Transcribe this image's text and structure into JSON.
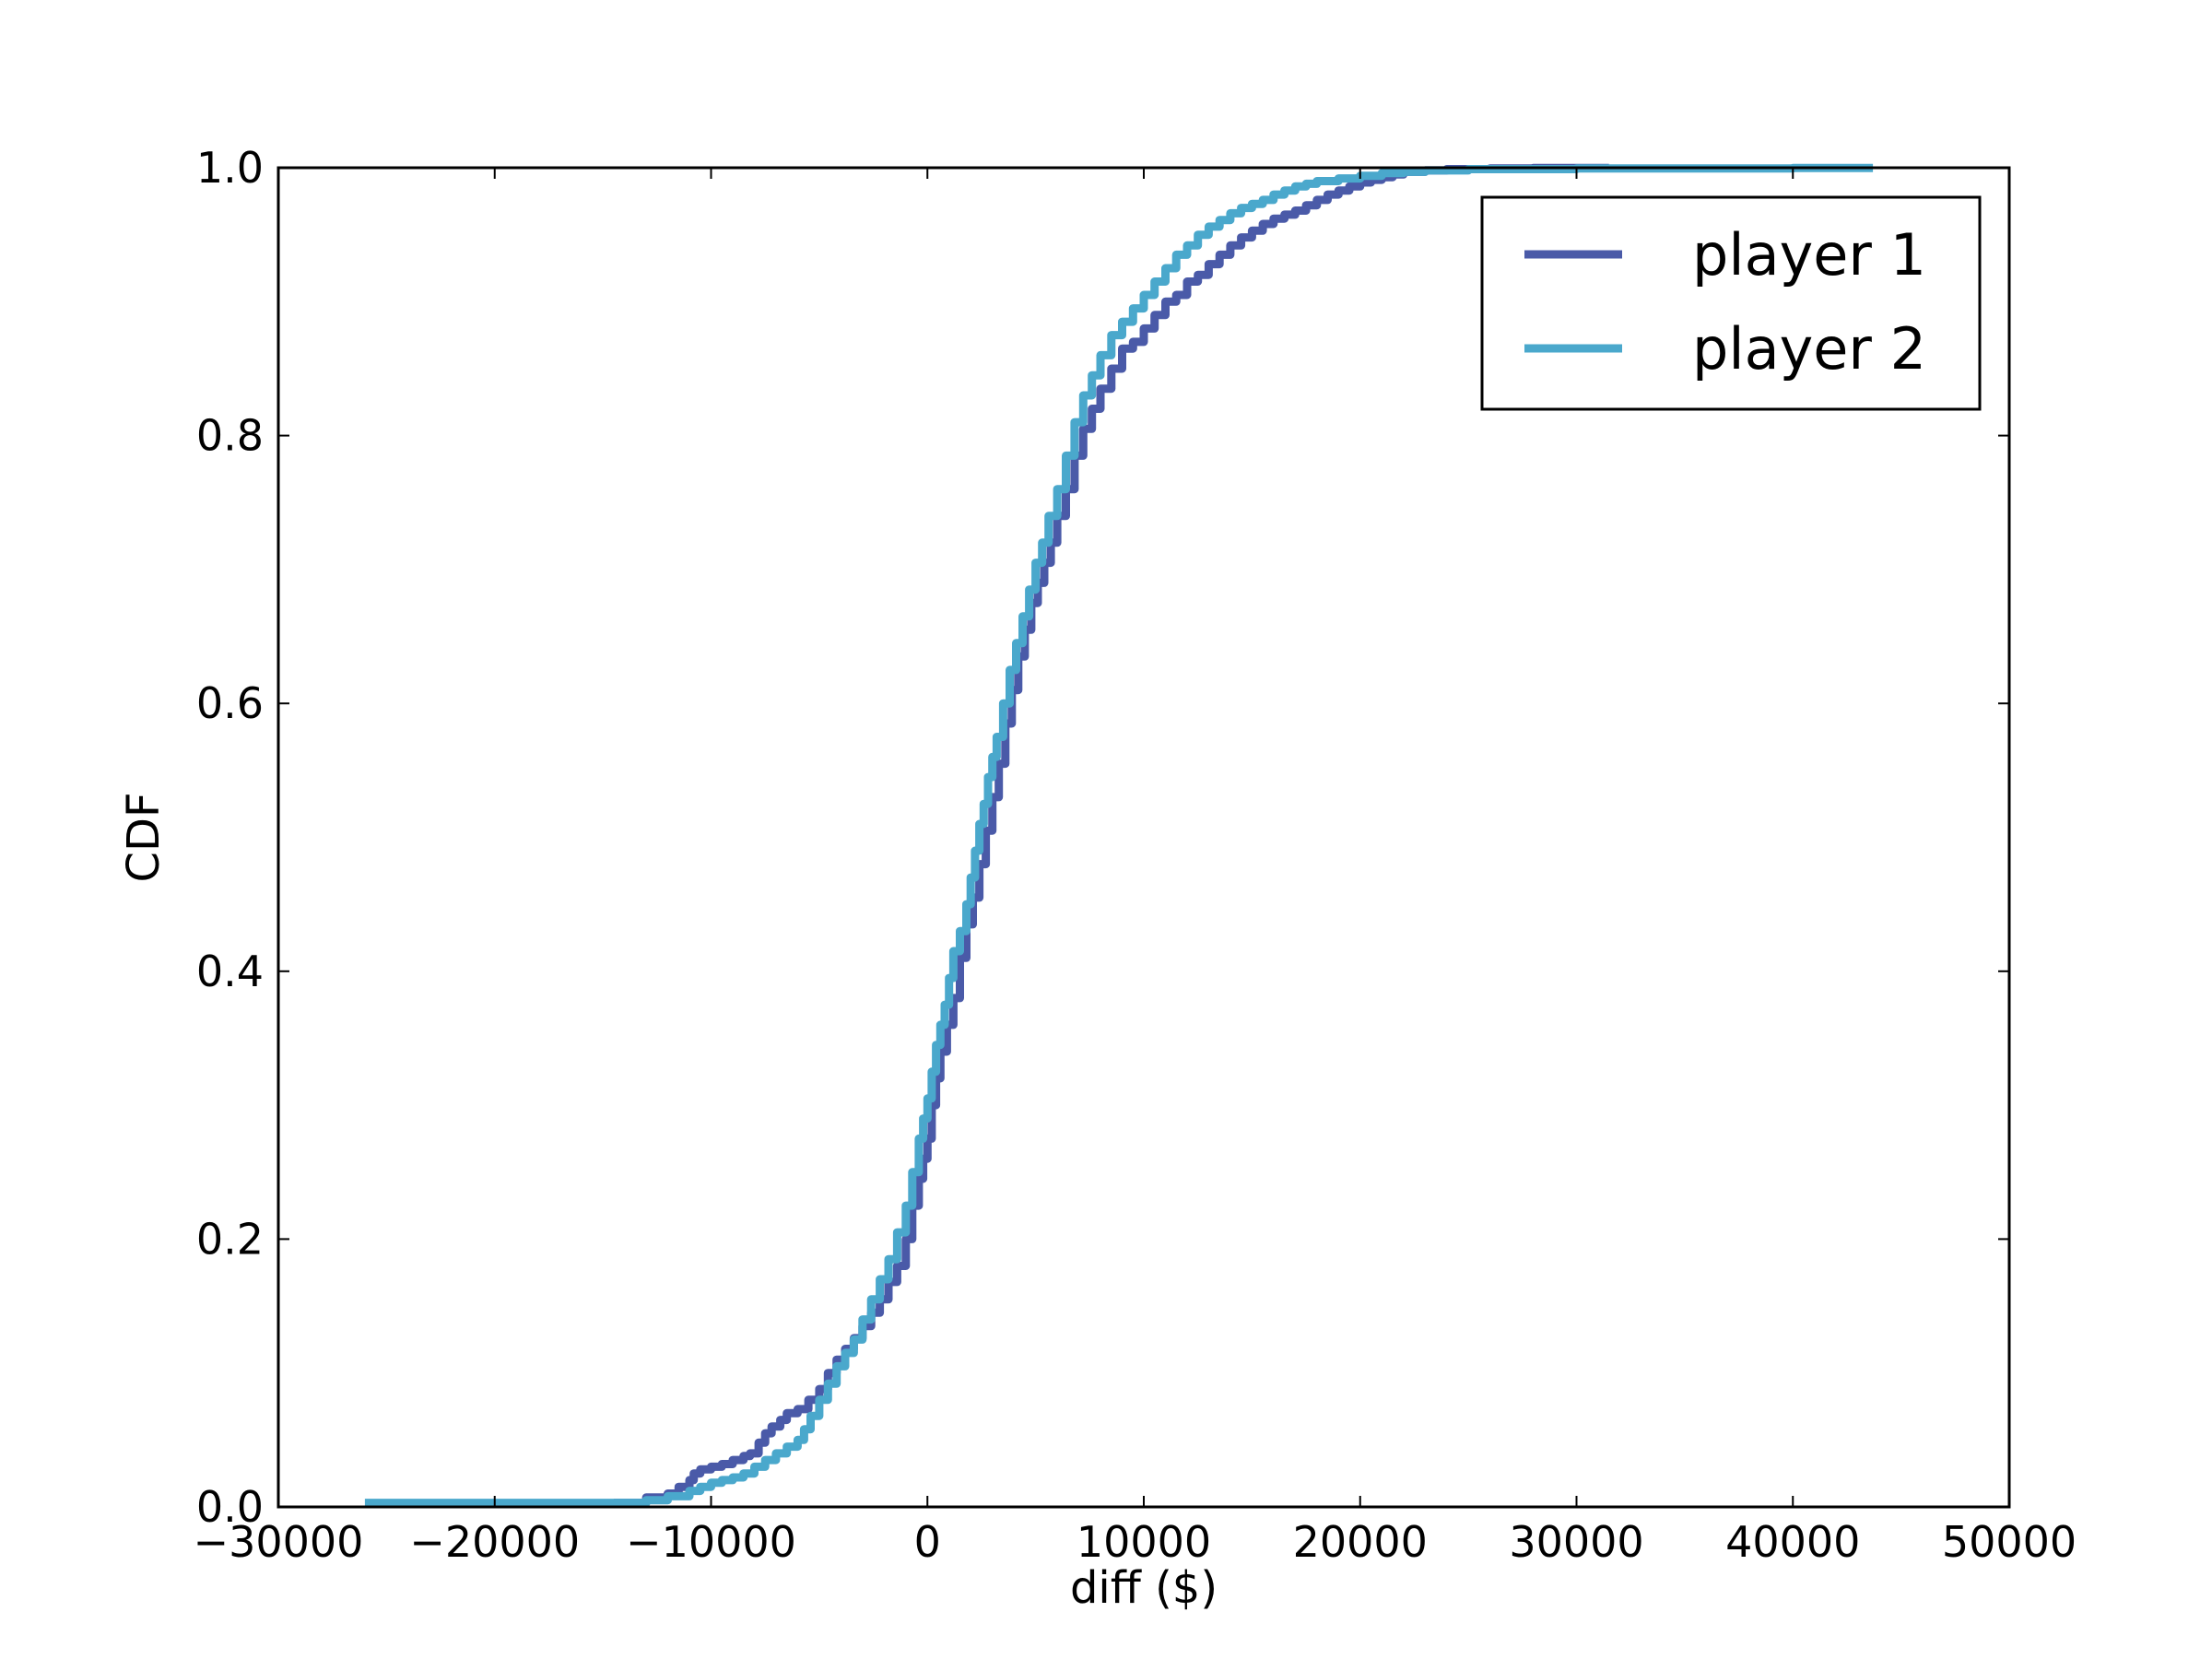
{
  "chart_data": {
    "type": "line",
    "xlabel": "diff ($)",
    "ylabel": "CDF",
    "xlim": [
      -30000,
      50000
    ],
    "ylim": [
      0.0,
      1.0
    ],
    "x_ticks": [
      -30000,
      -20000,
      -10000,
      0,
      10000,
      20000,
      30000,
      40000,
      50000
    ],
    "x_tick_labels": [
      "−30000",
      "−20000",
      "−10000",
      "0",
      "10000",
      "20000",
      "30000",
      "40000",
      "50000"
    ],
    "y_ticks": [
      0.0,
      0.2,
      0.4,
      0.6,
      0.8,
      1.0
    ],
    "y_tick_labels": [
      "0.0",
      "0.2",
      "0.4",
      "0.6",
      "0.8",
      "1.0"
    ],
    "grid": false,
    "legend_position": "top-right",
    "series": [
      {
        "name": "player 1",
        "color": "#4a5aa8",
        "x": [
          -14500,
          -13000,
          -12000,
          -11500,
          -11000,
          -10800,
          -10500,
          -10000,
          -9500,
          -9000,
          -8500,
          -8200,
          -7800,
          -7500,
          -7200,
          -6800,
          -6500,
          -6000,
          -5500,
          -5000,
          -4600,
          -4200,
          -3800,
          -3400,
          -3000,
          -2600,
          -2200,
          -1800,
          -1400,
          -1000,
          -700,
          -400,
          -200,
          0,
          200,
          400,
          600,
          900,
          1200,
          1500,
          1800,
          2100,
          2400,
          2700,
          3000,
          3300,
          3600,
          3900,
          4200,
          4500,
          4800,
          5100,
          5400,
          5700,
          6000,
          6400,
          6800,
          7200,
          7600,
          8000,
          8500,
          9000,
          9500,
          10000,
          10500,
          11000,
          11500,
          12000,
          12500,
          13000,
          13500,
          14000,
          14500,
          15000,
          15500,
          16000,
          16500,
          17000,
          17500,
          18000,
          18500,
          19000,
          19500,
          20000,
          20500,
          21000,
          21500,
          22000,
          23000,
          24000,
          26000,
          28000,
          31500
        ],
        "y": [
          0.003,
          0.007,
          0.01,
          0.015,
          0.02,
          0.025,
          0.028,
          0.03,
          0.032,
          0.035,
          0.038,
          0.04,
          0.048,
          0.055,
          0.06,
          0.065,
          0.07,
          0.073,
          0.08,
          0.088,
          0.1,
          0.11,
          0.118,
          0.126,
          0.135,
          0.145,
          0.155,
          0.168,
          0.18,
          0.2,
          0.225,
          0.245,
          0.26,
          0.275,
          0.3,
          0.32,
          0.34,
          0.36,
          0.38,
          0.41,
          0.435,
          0.455,
          0.48,
          0.505,
          0.53,
          0.555,
          0.585,
          0.61,
          0.635,
          0.655,
          0.675,
          0.69,
          0.705,
          0.72,
          0.74,
          0.76,
          0.785,
          0.805,
          0.82,
          0.835,
          0.85,
          0.865,
          0.87,
          0.88,
          0.89,
          0.9,
          0.905,
          0.915,
          0.92,
          0.928,
          0.935,
          0.942,
          0.948,
          0.953,
          0.958,
          0.962,
          0.965,
          0.968,
          0.972,
          0.976,
          0.98,
          0.983,
          0.986,
          0.989,
          0.991,
          0.993,
          0.995,
          0.997,
          0.998,
          0.999,
          0.9995,
          0.9998,
          1.0
        ]
      },
      {
        "name": "player 2",
        "color": "#4aa8cc",
        "x": [
          -26000,
          -20000,
          -15000,
          -13000,
          -12000,
          -11000,
          -10500,
          -10000,
          -9500,
          -9000,
          -8500,
          -8000,
          -7500,
          -7000,
          -6500,
          -6000,
          -5700,
          -5400,
          -5000,
          -4600,
          -4200,
          -3800,
          -3400,
          -3000,
          -2600,
          -2200,
          -1800,
          -1400,
          -1000,
          -700,
          -400,
          -200,
          0,
          200,
          400,
          600,
          800,
          1000,
          1200,
          1500,
          1800,
          2000,
          2200,
          2400,
          2600,
          2800,
          3000,
          3200,
          3500,
          3800,
          4100,
          4400,
          4700,
          5000,
          5300,
          5600,
          6000,
          6400,
          6800,
          7200,
          7600,
          8000,
          8500,
          9000,
          9500,
          10000,
          10500,
          11000,
          11500,
          12000,
          12500,
          13000,
          13500,
          14000,
          14500,
          15000,
          15500,
          16000,
          16500,
          17000,
          17500,
          18000,
          19000,
          20000,
          21000,
          22000,
          23000,
          25000,
          30000,
          40000,
          43700
        ],
        "y": [
          0.003,
          0.003,
          0.003,
          0.005,
          0.008,
          0.012,
          0.015,
          0.018,
          0.02,
          0.022,
          0.025,
          0.03,
          0.035,
          0.04,
          0.045,
          0.05,
          0.058,
          0.068,
          0.08,
          0.092,
          0.105,
          0.115,
          0.125,
          0.14,
          0.155,
          0.17,
          0.185,
          0.205,
          0.225,
          0.25,
          0.275,
          0.29,
          0.305,
          0.325,
          0.345,
          0.36,
          0.375,
          0.395,
          0.415,
          0.43,
          0.45,
          0.47,
          0.49,
          0.51,
          0.525,
          0.545,
          0.56,
          0.575,
          0.6,
          0.625,
          0.645,
          0.665,
          0.685,
          0.705,
          0.72,
          0.74,
          0.76,
          0.785,
          0.81,
          0.83,
          0.845,
          0.86,
          0.875,
          0.885,
          0.895,
          0.905,
          0.915,
          0.925,
          0.935,
          0.942,
          0.95,
          0.956,
          0.961,
          0.966,
          0.97,
          0.973,
          0.976,
          0.98,
          0.983,
          0.986,
          0.988,
          0.99,
          0.992,
          0.994,
          0.996,
          0.997,
          0.998,
          0.999,
          0.9995,
          0.9998,
          0.9998
        ]
      }
    ]
  }
}
